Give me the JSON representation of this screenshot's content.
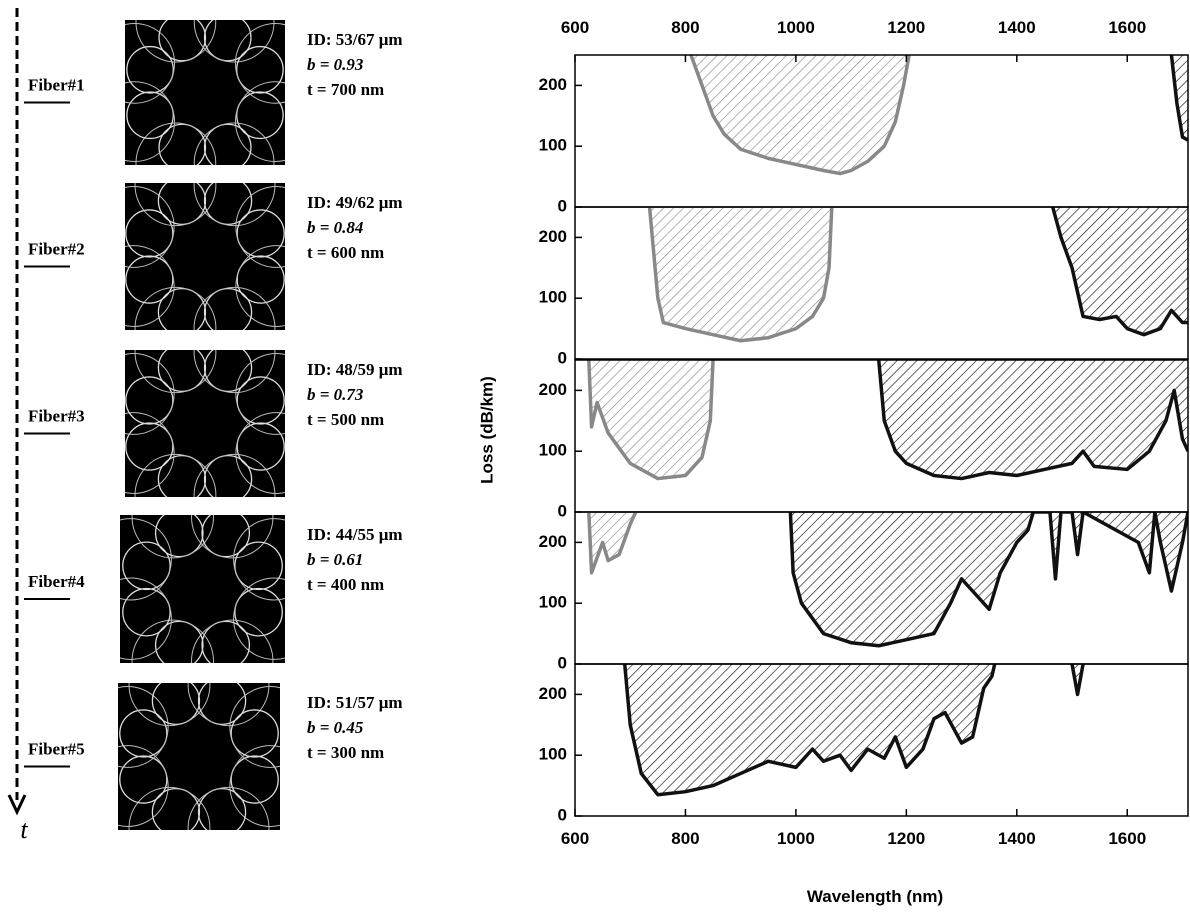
{
  "figure": {
    "ylabel": "Loss (dB/km)",
    "xlabel": "Wavelength (nm)",
    "time_axis": "t"
  },
  "fibers": [
    {
      "label": "Fiber#1",
      "id": "ID: 53/67 μm",
      "b": "b = 0.93",
      "t": "t = 700 nm"
    },
    {
      "label": "Fiber#2",
      "id": "ID: 49/62 μm",
      "b": "b = 0.84",
      "t": "t = 600 nm"
    },
    {
      "label": "Fiber#3",
      "id": "ID: 48/59 μm",
      "b": "b = 0.73",
      "t": "t = 500 nm"
    },
    {
      "label": "Fiber#4",
      "id": "ID: 44/55 μm",
      "b": "b = 0.61",
      "t": "t = 400 nm"
    },
    {
      "label": "Fiber#5",
      "id": "ID: 51/57 μm",
      "b": "b = 0.45",
      "t": "t = 300 nm"
    }
  ],
  "chart_data": [
    {
      "type": "area",
      "xlim": [
        600,
        1710
      ],
      "ylim": [
        0,
        250
      ],
      "yticks": [
        0,
        100,
        200
      ],
      "xticks": [
        600,
        800,
        1000,
        1200,
        1400,
        1600
      ],
      "xaxis": "top",
      "series": [
        {
          "color": "#888888",
          "x": [
            810,
            830,
            850,
            870,
            900,
            950,
            1000,
            1050,
            1080,
            1100,
            1130,
            1160,
            1180,
            1195,
            1205
          ],
          "values": [
            250,
            200,
            150,
            120,
            95,
            80,
            70,
            60,
            55,
            60,
            75,
            100,
            140,
            200,
            250
          ]
        },
        {
          "color": "#111111",
          "x": [
            1680,
            1690,
            1700,
            1710
          ],
          "values": [
            250,
            170,
            115,
            110
          ]
        }
      ]
    },
    {
      "type": "area",
      "xlim": [
        600,
        1710
      ],
      "ylim": [
        0,
        250
      ],
      "yticks": [
        0,
        100,
        200
      ],
      "series": [
        {
          "color": "#888888",
          "x": [
            735,
            740,
            750,
            760,
            800,
            850,
            900,
            950,
            1000,
            1030,
            1050,
            1060,
            1065
          ],
          "values": [
            250,
            200,
            100,
            60,
            50,
            40,
            30,
            35,
            50,
            70,
            100,
            150,
            250
          ]
        },
        {
          "color": "#111111",
          "x": [
            1465,
            1480,
            1500,
            1520,
            1550,
            1580,
            1600,
            1630,
            1660,
            1680,
            1700,
            1710
          ],
          "values": [
            250,
            200,
            150,
            70,
            65,
            70,
            50,
            40,
            50,
            80,
            60,
            60
          ]
        }
      ]
    },
    {
      "type": "area",
      "xlim": [
        600,
        1710
      ],
      "ylim": [
        0,
        250
      ],
      "yticks": [
        0,
        100,
        200
      ],
      "series": [
        {
          "color": "#888888",
          "x": [
            625,
            630,
            640,
            660,
            700,
            750,
            800,
            830,
            845,
            850
          ],
          "values": [
            250,
            140,
            180,
            130,
            80,
            55,
            60,
            90,
            150,
            250
          ]
        },
        {
          "color": "#111111",
          "x": [
            1150,
            1160,
            1180,
            1200,
            1250,
            1300,
            1350,
            1400,
            1450,
            1500,
            1520,
            1540,
            1600,
            1640,
            1670,
            1685,
            1700,
            1710
          ],
          "values": [
            250,
            150,
            100,
            80,
            60,
            55,
            65,
            60,
            70,
            80,
            100,
            75,
            70,
            100,
            150,
            200,
            120,
            100
          ]
        }
      ]
    },
    {
      "type": "area",
      "xlim": [
        600,
        1710
      ],
      "ylim": [
        0,
        250
      ],
      "yticks": [
        0,
        100,
        200
      ],
      "series": [
        {
          "color": "#888888",
          "x": [
            625,
            630,
            650,
            660,
            680,
            700,
            710
          ],
          "values": [
            250,
            150,
            200,
            170,
            180,
            230,
            250
          ]
        },
        {
          "color": "#111111",
          "x": [
            990,
            995,
            1010,
            1050,
            1100,
            1150,
            1200,
            1250,
            1280,
            1300,
            1330,
            1350,
            1370,
            1400,
            1420,
            1430,
            1460,
            1470,
            1480,
            1500,
            1510,
            1520,
            1620,
            1640,
            1650,
            1660,
            1680,
            1700,
            1710
          ],
          "values": [
            250,
            150,
            100,
            50,
            35,
            30,
            40,
            50,
            100,
            140,
            110,
            90,
            150,
            200,
            220,
            250,
            250,
            140,
            250,
            250,
            180,
            250,
            200,
            150,
            250,
            200,
            120,
            200,
            250
          ]
        }
      ]
    },
    {
      "type": "area",
      "xlim": [
        600,
        1710
      ],
      "ylim": [
        0,
        250
      ],
      "yticks": [
        0,
        100,
        200
      ],
      "xticks": [
        600,
        800,
        1000,
        1200,
        1400,
        1600
      ],
      "xaxis": "bottom",
      "series": [
        {
          "color": "#111111",
          "x": [
            690,
            700,
            720,
            750,
            800,
            850,
            900,
            950,
            1000,
            1030,
            1050,
            1080,
            1100,
            1130,
            1160,
            1180,
            1200,
            1230,
            1250,
            1270,
            1300,
            1320,
            1340,
            1355,
            1360,
            1400,
            1500,
            1510,
            1520
          ],
          "values": [
            250,
            150,
            70,
            35,
            40,
            50,
            70,
            90,
            80,
            110,
            90,
            100,
            75,
            110,
            95,
            130,
            80,
            110,
            160,
            170,
            120,
            130,
            210,
            230,
            250,
            null,
            250,
            200,
            250
          ]
        }
      ]
    }
  ]
}
